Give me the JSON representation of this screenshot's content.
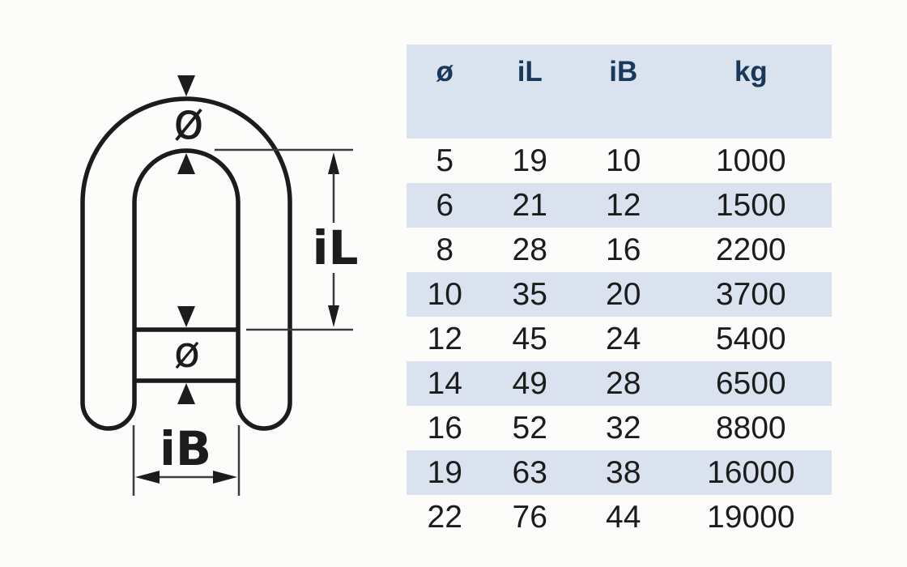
{
  "diagram": {
    "material_diameter_symbol": "ø",
    "pin_diameter_symbol": "ø",
    "inner_length_label": "iL",
    "inner_width_label": "iB"
  },
  "table": {
    "columns": [
      "ø",
      "iL",
      "iB",
      "kg"
    ],
    "rows": [
      [
        "5",
        "19",
        "10",
        "1000"
      ],
      [
        "6",
        "21",
        "12",
        "1500"
      ],
      [
        "8",
        "28",
        "16",
        "2200"
      ],
      [
        "10",
        "35",
        "20",
        "3700"
      ],
      [
        "12",
        "45",
        "24",
        "5400"
      ],
      [
        "14",
        "49",
        "28",
        "6500"
      ],
      [
        "16",
        "52",
        "32",
        "8800"
      ],
      [
        "19",
        "63",
        "38",
        "16000"
      ],
      [
        "22",
        "76",
        "44",
        "19000"
      ]
    ]
  },
  "colors": {
    "page_bg": "#fcfcfb",
    "line": "#1c1c1c",
    "dim_line": "#3c3c3c",
    "header_bg": "#d9e2ee",
    "row_alt_bg": "#d9e2ee",
    "header_text": "#19395c",
    "data_text": "#1c1c1c"
  }
}
